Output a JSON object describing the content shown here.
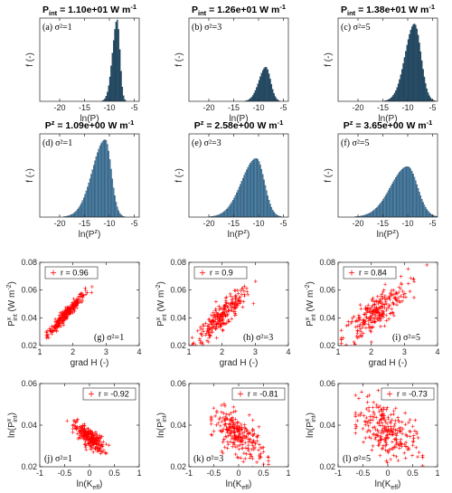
{
  "chart_data": [
    {
      "type": "histogram",
      "title": {
        "main": "P",
        "sub": "int",
        "tail": " = 1.10e+01 W m",
        "exp": "-1"
      },
      "panel_label": "(a) σ²=1",
      "xlabel": "ln(P)",
      "ylabel": "f (-)",
      "xlim": [
        -24,
        -4
      ],
      "xticks": [
        -20,
        -15,
        -10,
        -5
      ],
      "bar_color": "#1f4e6b",
      "dist": {
        "mu": -8.4,
        "s_left": 0.95,
        "s_right": 0.55,
        "peak": 1.0
      }
    },
    {
      "type": "histogram",
      "title": {
        "main": "P",
        "sub": "int",
        "tail": " = 1.26e+01 W m",
        "exp": "-1"
      },
      "panel_label": "(b) σ²=3",
      "xlabel": "ln(P)",
      "ylabel": "f (-)",
      "xlim": [
        -24,
        -4
      ],
      "xticks": [
        -20,
        -15,
        -10,
        -5
      ],
      "bar_color": "#1f4e6b",
      "dist": {
        "mu": -8.5,
        "s_left": 1.4,
        "s_right": 0.95,
        "peak": 0.42
      }
    },
    {
      "type": "histogram",
      "title": {
        "main": "P",
        "sub": "int",
        "tail": " = 1.38e+01 W m",
        "exp": "-1"
      },
      "panel_label": "(c) σ²=5",
      "xlabel": "ln(P)",
      "ylabel": "f (-)",
      "xlim": [
        -24,
        -4
      ],
      "xticks": [
        -20,
        -15,
        -10,
        -5
      ],
      "bar_color": "#1f4e6b",
      "dist": {
        "mu": -8.6,
        "s_left": 1.9,
        "s_right": 1.3,
        "peak": 0.95
      }
    },
    {
      "type": "histogram",
      "title": {
        "main": "P",
        "sup": "z",
        "tail": " = 1.09e+00 W m",
        "exp": "-1"
      },
      "panel_label": "(d) σ²=1",
      "xlabel": "ln(P",
      "xlabel_sup": "z",
      "xlabel_end": ")",
      "ylabel": "f (-)",
      "xlim": [
        -24,
        -4
      ],
      "xticks": [
        -20,
        -15,
        -10,
        -5
      ],
      "bar_color": "#4d8cb8",
      "dist": {
        "mu": -10.8,
        "s_left": 2.6,
        "s_right": 1.2,
        "peak": 0.95
      }
    },
    {
      "type": "histogram",
      "title": {
        "main": "P",
        "sup": "z",
        "tail": " = 2.58e+00 W m",
        "exp": "-1"
      },
      "panel_label": "(e) σ²=3",
      "xlabel": "ln(P",
      "xlabel_sup": "z",
      "xlabel_end": ")",
      "ylabel": "f (-)",
      "xlim": [
        -24,
        -4
      ],
      "xticks": [
        -20,
        -15,
        -10,
        -5
      ],
      "bar_color": "#4d8cb8",
      "dist": {
        "mu": -10.4,
        "s_left": 3.0,
        "s_right": 1.6,
        "peak": 0.72
      }
    },
    {
      "type": "histogram",
      "title": {
        "main": "P",
        "sup": "z",
        "tail": " = 3.65e+00 W m",
        "exp": "-1"
      },
      "panel_label": "(f) σ²=5",
      "xlabel": "ln(P",
      "xlabel_sup": "z",
      "xlabel_end": ")",
      "ylabel": "f (-)",
      "xlim": [
        -24,
        -4
      ],
      "xticks": [
        -20,
        -15,
        -10,
        -5
      ],
      "bar_color": "#4d8cb8",
      "dist": {
        "mu": -10.0,
        "s_left": 3.4,
        "s_right": 2.0,
        "peak": 0.62
      }
    },
    {
      "type": "scatter",
      "panel_label": "(g) σ²=1",
      "legend": "r = 0.96",
      "legend_pos": "top-left",
      "xlabel": "grad H (-)",
      "ylabel": "P",
      "ylabel_sup": "x",
      "ylabel_sub": "int",
      "ylabel_unit": " (W m",
      "ylabel_exp": "-2",
      "ylabel_close": ")",
      "xlim": [
        1,
        4
      ],
      "xticks": [
        1,
        2,
        3,
        4
      ],
      "ylim": [
        0.02,
        0.08
      ],
      "yticks": [
        0.02,
        0.04,
        0.06,
        0.08
      ],
      "ytick_labels": [
        "0.02",
        "0.04",
        "0.06",
        "0.08"
      ],
      "color": "#ff0000",
      "cloud": {
        "n": 260,
        "x_mean": 1.8,
        "x_sd": 0.28,
        "x_min": 1.2,
        "x_max": 2.6,
        "slope": 0.026,
        "intercept": -0.004,
        "noise": 0.0022
      }
    },
    {
      "type": "scatter",
      "panel_label": "(h) σ²=3",
      "legend": "r = 0.9",
      "legend_pos": "top-left",
      "xlabel": "grad H (-)",
      "ylabel": "P",
      "ylabel_sup": "x",
      "ylabel_sub": "int",
      "ylabel_unit": " (W m",
      "ylabel_exp": "-2",
      "ylabel_close": ")",
      "xlim": [
        1,
        4
      ],
      "xticks": [
        1,
        2,
        3,
        4
      ],
      "ylim": [
        0.02,
        0.08
      ],
      "yticks": [
        0.02,
        0.04,
        0.06,
        0.08
      ],
      "ytick_labels": [
        "0.02",
        "0.04",
        "0.06",
        "0.08"
      ],
      "color": "#ff0000",
      "cloud": {
        "n": 260,
        "x_mean": 2.0,
        "x_sd": 0.42,
        "x_min": 1.1,
        "x_max": 3.4,
        "slope": 0.022,
        "intercept": -0.003,
        "noise": 0.0045
      }
    },
    {
      "type": "scatter",
      "panel_label": "(i) σ²=5",
      "legend": "r = 0.84",
      "legend_pos": "top-left",
      "xlabel": "grad H (-)",
      "ylabel": "P",
      "ylabel_sup": "x",
      "ylabel_sub": "int",
      "ylabel_unit": " (W m",
      "ylabel_exp": "-2",
      "ylabel_close": ")",
      "xlim": [
        1,
        4
      ],
      "xticks": [
        1,
        2,
        3,
        4
      ],
      "ylim": [
        0.02,
        0.08
      ],
      "yticks": [
        0.02,
        0.04,
        0.06,
        0.08
      ],
      "ytick_labels": [
        "0.02",
        "0.04",
        "0.06",
        "0.08"
      ],
      "color": "#ff0000",
      "cloud": {
        "n": 260,
        "x_mean": 2.1,
        "x_sd": 0.5,
        "x_min": 1.1,
        "x_max": 3.7,
        "slope": 0.019,
        "intercept": 0.003,
        "noise": 0.0065
      }
    },
    {
      "type": "scatter",
      "panel_label": "(j) σ²=1",
      "legend": "r = -0.92",
      "legend_pos": "top-right",
      "xlabel": "ln(K",
      "xlabel_sub": "eff",
      "xlabel_end": ")",
      "ylabel": "ln(P",
      "ylabel_sup": "x",
      "ylabel_sub": "int",
      "ylabel_unit": ")",
      "xlim": [
        -1,
        1
      ],
      "xticks": [
        -1,
        -0.5,
        0,
        0.5,
        1
      ],
      "ylim": [
        0.02,
        0.06
      ],
      "yticks": [
        0.02,
        0.04,
        0.06
      ],
      "ytick_labels": [
        "0.02",
        "0.04",
        "0.06"
      ],
      "color": "#ff0000",
      "cloud": {
        "n": 260,
        "x_mean": 0.0,
        "x_sd": 0.15,
        "x_min": -0.5,
        "x_max": 0.45,
        "slope": -0.016,
        "intercept": 0.034,
        "noise": 0.0022
      }
    },
    {
      "type": "scatter",
      "panel_label": "(k) σ²=3",
      "legend": "r = -0.81",
      "legend_pos": "top-right",
      "xlabel": "ln(K",
      "xlabel_sub": "eff",
      "xlabel_end": ")",
      "ylabel": "ln(P",
      "ylabel_sup": "x",
      "ylabel_sub": "int",
      "ylabel_unit": ")",
      "xlim": [
        -1,
        1
      ],
      "xticks": [
        -1,
        -0.5,
        0,
        0.5,
        1
      ],
      "ylim": [
        0.02,
        0.06
      ],
      "yticks": [
        0.02,
        0.04,
        0.06
      ],
      "ytick_labels": [
        "0.02",
        "0.04",
        "0.06"
      ],
      "color": "#ff0000",
      "cloud": {
        "n": 260,
        "x_mean": 0.0,
        "x_sd": 0.25,
        "x_min": -0.55,
        "x_max": 0.6,
        "slope": -0.015,
        "intercept": 0.035,
        "noise": 0.0045
      }
    },
    {
      "type": "scatter",
      "panel_label": "(l) σ²=5",
      "legend": "r = -0.73",
      "legend_pos": "top-right",
      "xlabel": "ln(K",
      "xlabel_sub": "eff",
      "xlabel_end": ")",
      "ylabel": "ln(P",
      "ylabel_sup": "x",
      "ylabel_sub": "int",
      "ylabel_unit": ")",
      "xlim": [
        -1,
        1
      ],
      "xticks": [
        -1,
        -0.5,
        0,
        0.5,
        1
      ],
      "ylim": [
        0.02,
        0.06
      ],
      "yticks": [
        0.02,
        0.04,
        0.06
      ],
      "ytick_labels": [
        "0.02",
        "0.04",
        "0.06"
      ],
      "color": "#ff0000",
      "cloud": {
        "n": 260,
        "x_mean": -0.05,
        "x_sd": 0.3,
        "x_min": -0.65,
        "x_max": 0.7,
        "slope": -0.014,
        "intercept": 0.037,
        "noise": 0.0065
      }
    }
  ]
}
